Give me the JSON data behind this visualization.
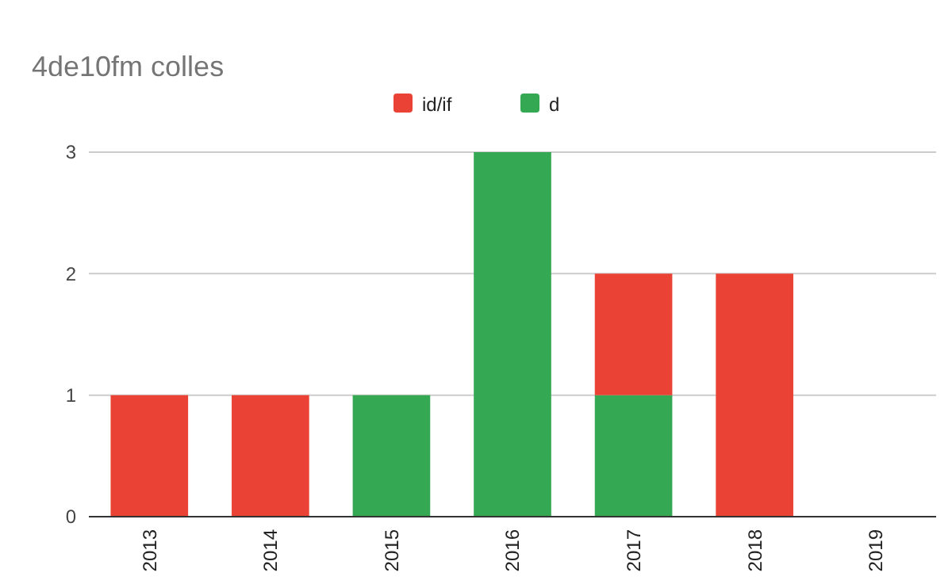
{
  "chart_data": {
    "type": "bar",
    "title": "4de10fm colles",
    "categories": [
      "2013",
      "2014",
      "2015",
      "2016",
      "2017",
      "2018",
      "2019"
    ],
    "stacked": true,
    "series": [
      {
        "name": "d",
        "color": "#34a853",
        "values": [
          0,
          0,
          1,
          3,
          1,
          0,
          0
        ]
      },
      {
        "name": "id/if",
        "color": "#ea4335",
        "values": [
          1,
          1,
          0,
          0,
          1,
          2,
          0
        ]
      }
    ],
    "ylim": [
      0,
      3
    ],
    "yticks": [
      0,
      1,
      2,
      3
    ],
    "grid": "y",
    "legend": "top"
  }
}
